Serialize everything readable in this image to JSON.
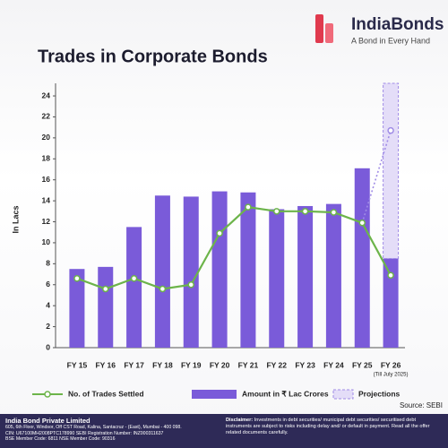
{
  "brand": {
    "name": "IndiaBonds",
    "tagline": "A Bond in Every Hand"
  },
  "chart_data": {
    "type": "bar-line",
    "title": "Trades in Corporate Bonds",
    "y_label": "In Lacs",
    "categories": [
      "FY 15",
      "FY 16",
      "FY 17",
      "FY 18",
      "FY 19",
      "FY 20",
      "FY 21",
      "FY 22",
      "FY 23",
      "FY 24",
      "FY 25",
      "FY 26"
    ],
    "category_note": "(Till July 2025)",
    "series": [
      {
        "name": "No. of Trades Settled",
        "type": "line",
        "color": "#6cb44a",
        "values": [
          6.6,
          5.6,
          6.6,
          5.6,
          6.0,
          10.9,
          13.4,
          13.0,
          13.0,
          12.9,
          11.9,
          6.9
        ]
      },
      {
        "name": "Amount in ₹ Lac Crores",
        "type": "bar",
        "color": "#7a5bd9",
        "values": [
          7.5,
          7.7,
          11.5,
          14.5,
          14.4,
          14.9,
          14.8,
          13.2,
          13.5,
          13.7,
          17.1,
          8.5
        ]
      },
      {
        "name": "Projections",
        "type": "projection",
        "color": "#a08ce6",
        "values": [
          null,
          null,
          null,
          null,
          null,
          null,
          null,
          null,
          null,
          null,
          null,
          16.7
        ],
        "line_values": [
          null,
          null,
          null,
          null,
          null,
          null,
          null,
          null,
          null,
          null,
          11.9,
          20.7
        ]
      }
    ],
    "ylim": [
      0,
      25.2
    ],
    "yticks": [
      0,
      2,
      4,
      6,
      8,
      10,
      12,
      14,
      16,
      18,
      20,
      22,
      24
    ],
    "source": "Source: SEBI"
  },
  "footer": {
    "company": "India Bond Private Limited",
    "lines": [
      "605, 6th Floor, Windsor, Off CST Road, Kalina, Santacruz - (East), Mumbai - 400 098.",
      "CIN: U67100MH2008PTC178990   SEBI Registration Number: INZ000311637",
      "BSE Member Code: 6811   NSE Member Code: 90316"
    ],
    "disclaimer_label": "Disclaimer:",
    "disclaimer": "Investments in debt securities/ municipal debt securities/ securitised debt instruments are subject to risks including delay and/ or default in payment. Read all the offer related documents carefully."
  }
}
